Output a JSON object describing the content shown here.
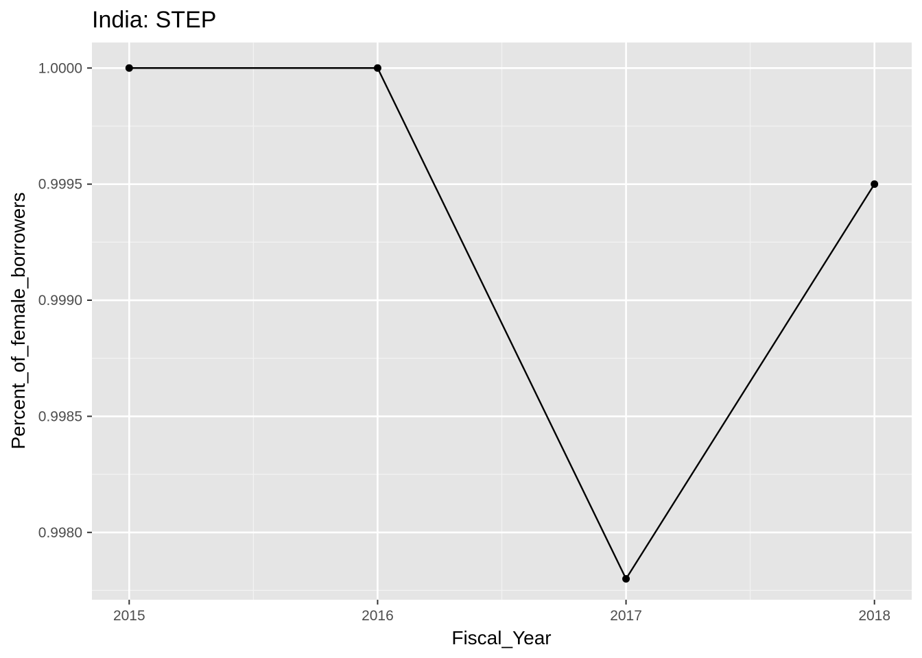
{
  "chart_data": {
    "type": "line",
    "title": "India:  STEP",
    "xlabel": "Fiscal_Year",
    "ylabel": "Percent_of_female_borrowers",
    "x": [
      2015,
      2016,
      2017,
      2018
    ],
    "x_ticks": [
      "2015",
      "2016",
      "2017",
      "2018"
    ],
    "y_ticks": [
      "0.9980",
      "0.9985",
      "0.9990",
      "0.9995",
      "1.0000"
    ],
    "series": [
      {
        "values": [
          1.0,
          1.0,
          0.9978,
          0.9995
        ]
      }
    ],
    "xlim": [
      2014.85,
      2018.15
    ],
    "ylim": [
      0.99771,
      1.00011
    ],
    "grid": true,
    "legend": "none",
    "colors": {
      "panel": "#e5e5e5",
      "grid_major": "#ffffff",
      "grid_minor": "#f2f2f2",
      "line": "#000000",
      "tick_text": "#4d4d4d",
      "tick_mark": "#333333"
    }
  }
}
